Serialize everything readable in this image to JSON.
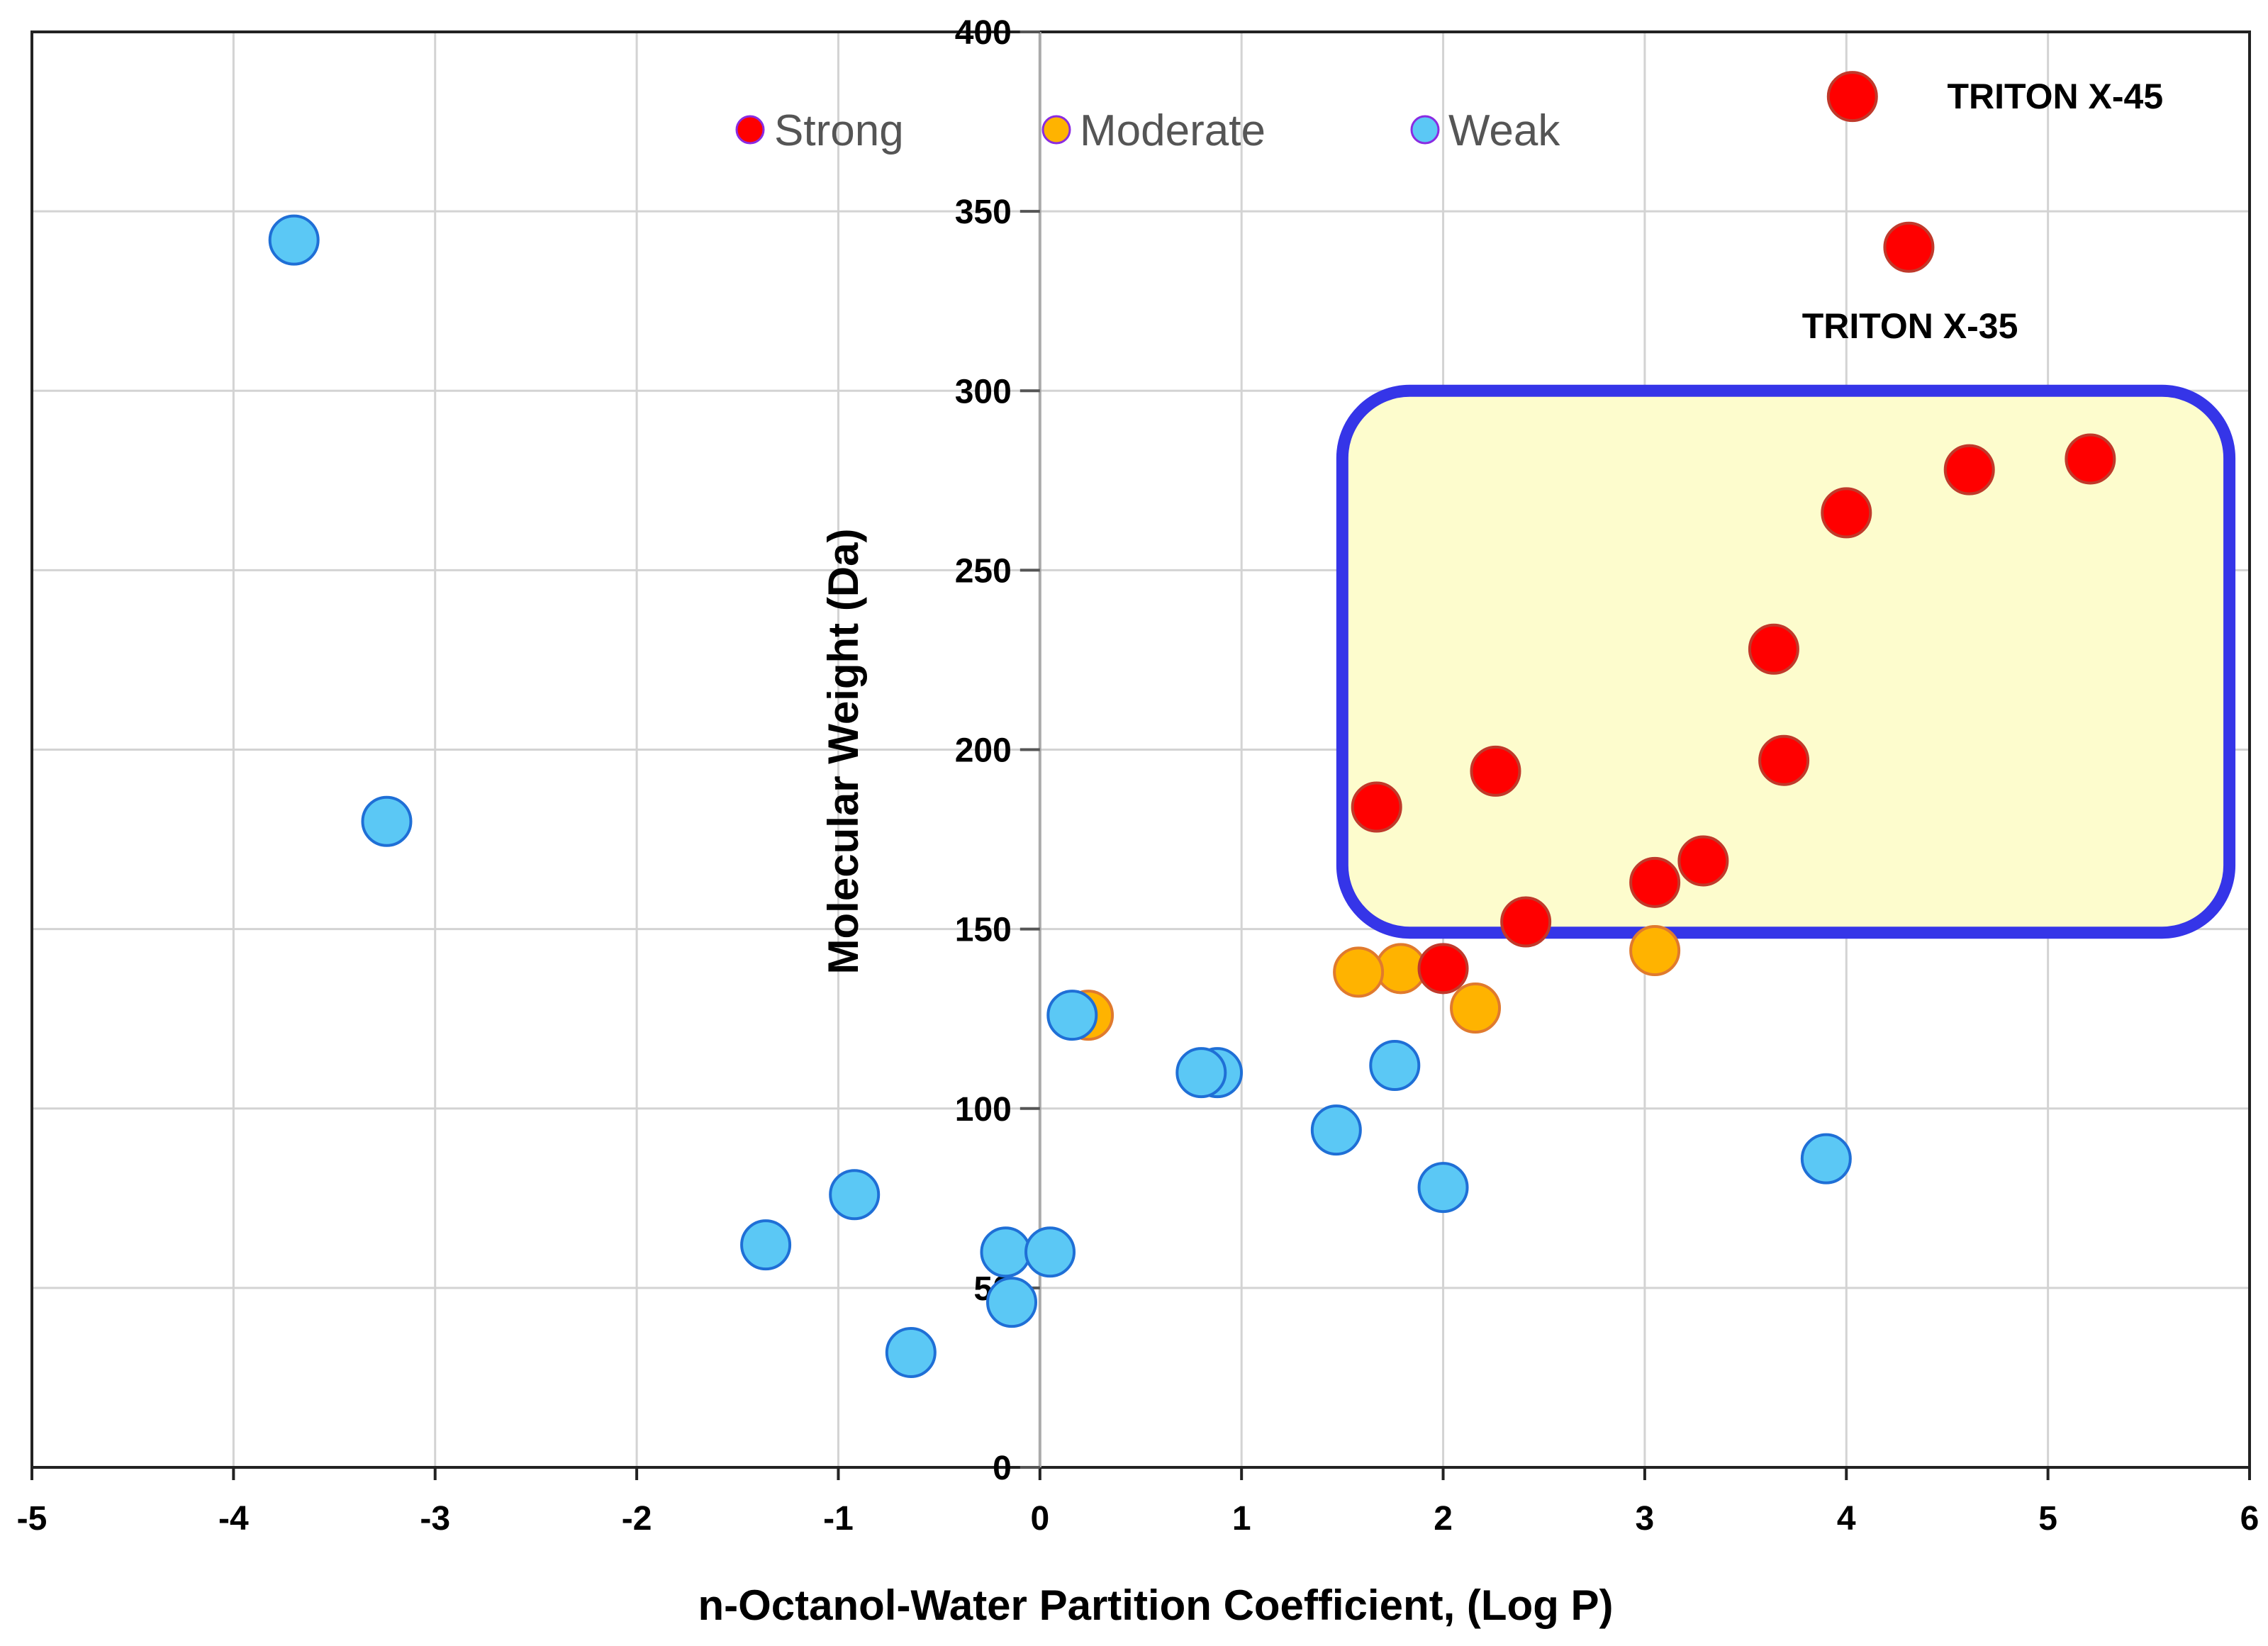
{
  "chart_data": {
    "type": "scatter",
    "title": "",
    "xlabel": "n-Octanol-Water Partition Coefficient, (Log P)",
    "ylabel": "Molecular Weight (Da)",
    "xlim": [
      -5,
      6
    ],
    "ylim": [
      0,
      400
    ],
    "x_ticks": [
      -5,
      -4,
      -3,
      -2,
      -1,
      0,
      1,
      2,
      3,
      4,
      5,
      6
    ],
    "y_ticks": [
      0,
      50,
      100,
      150,
      200,
      250,
      300,
      350,
      400
    ],
    "grid": true,
    "legend_position": "top-center",
    "colors": {
      "Strong": "#ff0000",
      "Moderate": "#ffb300",
      "Weak": "#5bc8f5",
      "highlight_border": "#3535e8",
      "highlight_fill": "#fdfccd"
    },
    "series": [
      {
        "name": "Strong",
        "points": [
          {
            "x": 4.03,
            "y": 382
          },
          {
            "x": 4.31,
            "y": 340
          },
          {
            "x": 5.21,
            "y": 281
          },
          {
            "x": 4.61,
            "y": 278
          },
          {
            "x": 4.0,
            "y": 266
          },
          {
            "x": 3.64,
            "y": 228
          },
          {
            "x": 3.69,
            "y": 197
          },
          {
            "x": 2.26,
            "y": 194
          },
          {
            "x": 1.67,
            "y": 184
          },
          {
            "x": 3.29,
            "y": 169
          },
          {
            "x": 3.05,
            "y": 163
          },
          {
            "x": 2.41,
            "y": 152
          },
          {
            "x": 2.0,
            "y": 139
          }
        ]
      },
      {
        "name": "Moderate",
        "points": [
          {
            "x": 3.05,
            "y": 144
          },
          {
            "x": 1.79,
            "y": 139
          },
          {
            "x": 1.58,
            "y": 138
          },
          {
            "x": 2.16,
            "y": 128
          },
          {
            "x": 0.24,
            "y": 126
          }
        ]
      },
      {
        "name": "Weak",
        "points": [
          {
            "x": -3.7,
            "y": 342
          },
          {
            "x": -3.24,
            "y": 180
          },
          {
            "x": 0.16,
            "y": 126
          },
          {
            "x": 0.88,
            "y": 110
          },
          {
            "x": 0.8,
            "y": 110
          },
          {
            "x": 1.76,
            "y": 112
          },
          {
            "x": 1.47,
            "y": 94
          },
          {
            "x": 2.0,
            "y": 78
          },
          {
            "x": 3.9,
            "y": 86
          },
          {
            "x": -0.92,
            "y": 76
          },
          {
            "x": -1.36,
            "y": 62
          },
          {
            "x": -0.17,
            "y": 60
          },
          {
            "x": 0.05,
            "y": 60
          },
          {
            "x": -0.14,
            "y": 46
          },
          {
            "x": -0.64,
            "y": 32
          }
        ]
      }
    ],
    "annotations": [
      {
        "text": "TRITON X-45",
        "x": 4.5,
        "y": 382
      },
      {
        "text": "TRITON X-35",
        "x": 3.78,
        "y": 318
      }
    ],
    "highlight_region": {
      "x_range": [
        1.5,
        5.9
      ],
      "y_range": [
        149,
        300
      ]
    }
  }
}
